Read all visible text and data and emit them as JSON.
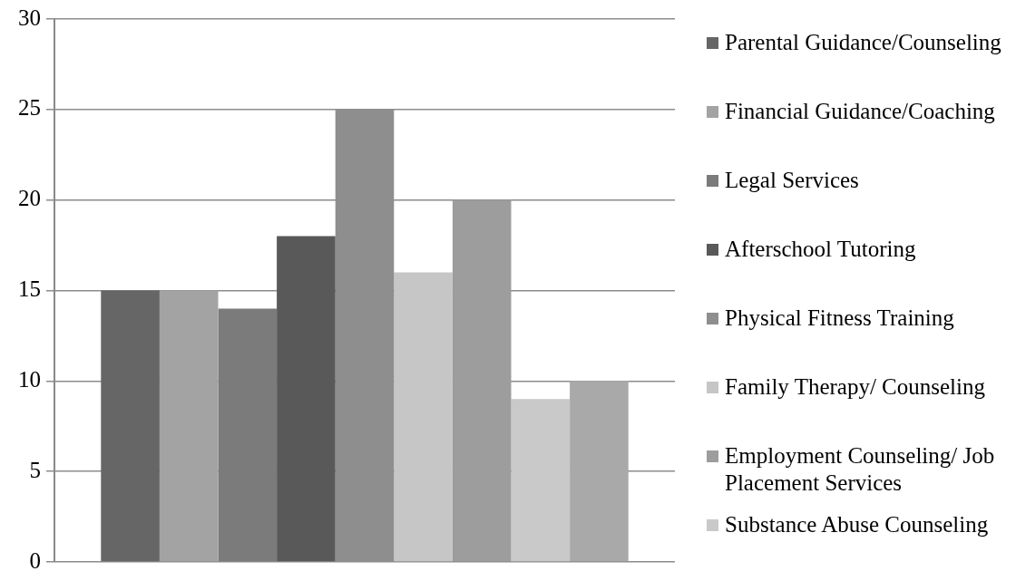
{
  "chart_data": {
    "type": "bar",
    "categories": [
      null
    ],
    "series": [
      {
        "name": "Parental Guidance/Counseling",
        "color": "#666666",
        "values": [
          15
        ]
      },
      {
        "name": "Financial Guidance/Coaching",
        "color": "#a3a3a3",
        "values": [
          15
        ]
      },
      {
        "name": "Legal Services",
        "color": "#7b7b7b",
        "values": [
          14
        ]
      },
      {
        "name": "Afterschool Tutoring",
        "color": "#595959",
        "values": [
          18
        ]
      },
      {
        "name": "Physical Fitness Training",
        "color": "#8e8e8e",
        "values": [
          25
        ]
      },
      {
        "name": "Family Therapy/ Counseling",
        "color": "#c6c6c6",
        "values": [
          16
        ]
      },
      {
        "name": "Employment Counseling/ Job Placement Services",
        "color": "#9d9d9d",
        "values": [
          20
        ]
      },
      {
        "name": "Substance Abuse Counseling",
        "color": "#c9c9c9",
        "values": [
          9
        ]
      },
      {
        "color": "#a9a9a9",
        "values": [
          10
        ]
      }
    ],
    "ylim": [
      0,
      30
    ],
    "yticks": [
      0,
      5,
      10,
      15,
      20,
      25,
      30
    ],
    "grid": "y",
    "legend": "right",
    "tick_labels": "y"
  }
}
